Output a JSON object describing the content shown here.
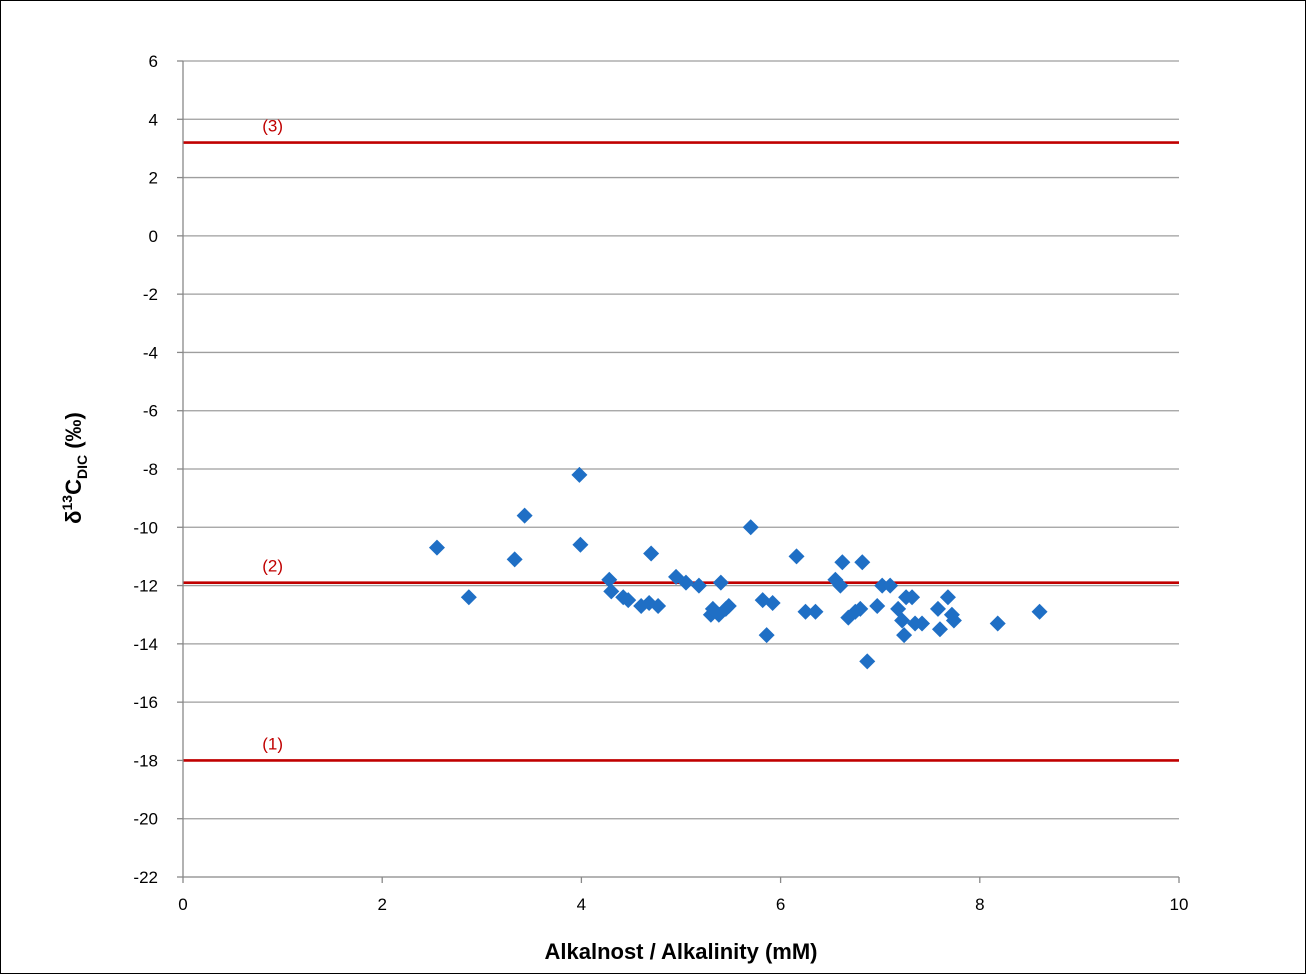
{
  "chart_data": {
    "type": "scatter",
    "title": "",
    "xlabel": "Alkalnost / Alkalinity (mM)",
    "ylabel": {
      "prefix": "δ",
      "superscript": "13",
      "main": "C",
      "subscript": "DIC",
      "suffix": " (‰)"
    },
    "xlim": [
      0,
      10
    ],
    "ylim": [
      -22,
      6
    ],
    "xticks": [
      0,
      2,
      4,
      6,
      8,
      10
    ],
    "yticks": [
      6,
      4,
      2,
      0,
      -2,
      -4,
      -6,
      -8,
      -10,
      -12,
      -14,
      -16,
      -18,
      -20,
      -22
    ],
    "grid": "horizontal",
    "legend": "none",
    "colors": {
      "points": "#1f6fc5",
      "reference_lines": "#c00000",
      "grid": "#9e9e9e"
    },
    "reference_lines": [
      {
        "label": "(3)",
        "y": 3.2,
        "label_x": 0.9
      },
      {
        "label": "(2)",
        "y": -11.9,
        "label_x": 0.9
      },
      {
        "label": "(1)",
        "y": -18.0,
        "label_x": 0.9
      }
    ],
    "points": [
      [
        2.55,
        -10.7
      ],
      [
        2.87,
        -12.4
      ],
      [
        3.33,
        -11.1
      ],
      [
        3.43,
        -9.6
      ],
      [
        3.98,
        -8.2
      ],
      [
        3.99,
        -10.6
      ],
      [
        4.28,
        -11.8
      ],
      [
        4.3,
        -12.2
      ],
      [
        4.42,
        -12.4
      ],
      [
        4.47,
        -12.5
      ],
      [
        4.6,
        -12.7
      ],
      [
        4.68,
        -12.6
      ],
      [
        4.7,
        -10.9
      ],
      [
        4.77,
        -12.7
      ],
      [
        4.95,
        -11.7
      ],
      [
        5.05,
        -11.9
      ],
      [
        5.18,
        -12.0
      ],
      [
        5.3,
        -13.0
      ],
      [
        5.32,
        -12.8
      ],
      [
        5.38,
        -13.0
      ],
      [
        5.4,
        -11.9
      ],
      [
        5.45,
        -12.8
      ],
      [
        5.48,
        -12.7
      ],
      [
        5.7,
        -10.0
      ],
      [
        5.82,
        -12.5
      ],
      [
        5.86,
        -13.7
      ],
      [
        5.92,
        -12.6
      ],
      [
        6.16,
        -11.0
      ],
      [
        6.25,
        -12.9
      ],
      [
        6.35,
        -12.9
      ],
      [
        6.55,
        -11.8
      ],
      [
        6.6,
        -12.0
      ],
      [
        6.62,
        -11.2
      ],
      [
        6.68,
        -13.1
      ],
      [
        6.75,
        -12.9
      ],
      [
        6.8,
        -12.8
      ],
      [
        6.82,
        -11.2
      ],
      [
        6.87,
        -14.6
      ],
      [
        6.97,
        -12.7
      ],
      [
        7.02,
        -12.0
      ],
      [
        7.1,
        -12.0
      ],
      [
        7.18,
        -12.8
      ],
      [
        7.22,
        -13.2
      ],
      [
        7.24,
        -13.7
      ],
      [
        7.26,
        -12.4
      ],
      [
        7.32,
        -12.4
      ],
      [
        7.35,
        -13.3
      ],
      [
        7.42,
        -13.3
      ],
      [
        7.58,
        -12.8
      ],
      [
        7.6,
        -13.5
      ],
      [
        7.68,
        -12.4
      ],
      [
        7.72,
        -13.0
      ],
      [
        7.74,
        -13.2
      ],
      [
        8.18,
        -13.3
      ],
      [
        8.6,
        -12.9
      ]
    ]
  }
}
